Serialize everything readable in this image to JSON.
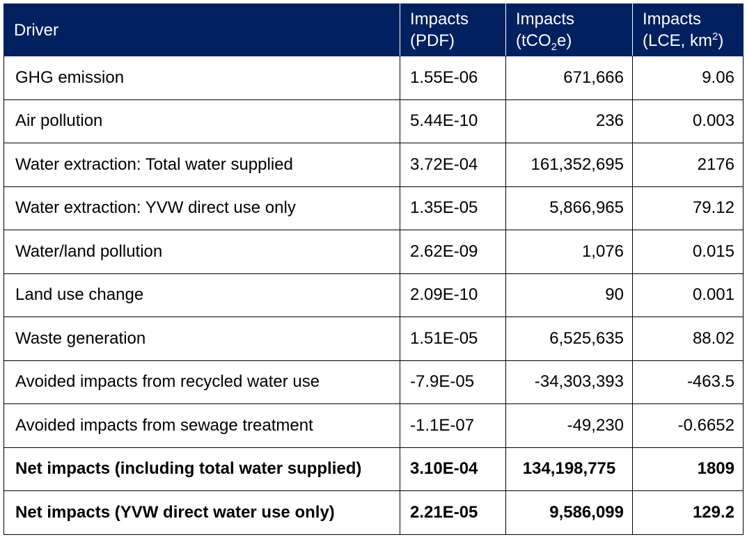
{
  "header": {
    "driver": "Driver",
    "pdf_line1": "Impacts",
    "pdf_line2": "(PDF)",
    "tco2_line1": "Impacts",
    "tco2_line2_pre": "(tCO",
    "tco2_line2_sub": "2",
    "tco2_line2_post": "e)",
    "lce_line1": "Impacts",
    "lce_line2_pre": "(LCE, km",
    "lce_line2_sup": "2",
    "lce_line2_post": ")"
  },
  "rows": [
    {
      "driver": "GHG emission",
      "pdf": "1.55E-06",
      "tco2e": "671,666",
      "lce": "9.06"
    },
    {
      "driver": "Air pollution",
      "pdf": "5.44E-10",
      "tco2e": "236",
      "lce": "0.003"
    },
    {
      "driver": "Water extraction: Total water supplied",
      "pdf": "3.72E-04",
      "tco2e": "161,352,695",
      "lce": "2176"
    },
    {
      "driver": "Water extraction: YVW direct use only",
      "pdf": "1.35E-05",
      "tco2e": "5,866,965",
      "lce": "79.12"
    },
    {
      "driver": "Water/land pollution",
      "pdf": "2.62E-09",
      "tco2e": "1,076",
      "lce": "0.015"
    },
    {
      "driver": "Land use change",
      "pdf": "2.09E-10",
      "tco2e": "90",
      "lce": "0.001"
    },
    {
      "driver": "Waste generation",
      "pdf": "1.51E-05",
      "tco2e": "6,525,635",
      "lce": "88.02"
    },
    {
      "driver": "Avoided impacts from recycled water use",
      "pdf": "-7.9E-05",
      "tco2e": "-34,303,393",
      "lce": "-463.5"
    },
    {
      "driver": "Avoided impacts from sewage treatment",
      "pdf": "-1.1E-07",
      "tco2e": "-49,230",
      "lce": "-0.6652"
    }
  ],
  "totals": [
    {
      "driver": "Net impacts (including total water supplied)",
      "pdf": "3.10E-04",
      "tco2e": "134,198,775",
      "lce": "1809"
    },
    {
      "driver": "Net impacts (YVW direct water use only)",
      "pdf": "2.21E-05",
      "tco2e": "9,586,099",
      "lce": "129.2"
    }
  ],
  "colors": {
    "header_bg": "#002060",
    "header_text": "#ffffff",
    "border": "#000000"
  }
}
